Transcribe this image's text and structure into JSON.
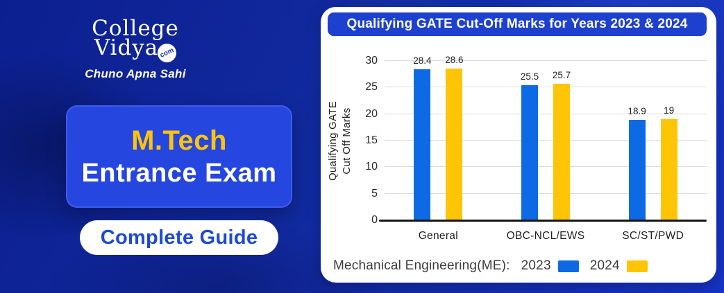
{
  "brand": {
    "logo_line1": "College",
    "logo_line2": "Vidya",
    "logo_badge": "com",
    "tagline": "Chuno Apna Sahi"
  },
  "hero": {
    "title_highlight": "M.Tech",
    "title_main": "Entrance Exam",
    "cta_label": "Complete Guide"
  },
  "chart_panel": {
    "title": "Qualifying GATE Cut-Off Marks for Years 2023 & 2024"
  },
  "chart_data": {
    "type": "bar",
    "title": "Qualifying GATE Cut-Off Marks for Years 2023 & 2024",
    "ylabel_lines": [
      "Qualifying GATE",
      "Cut Off Marks"
    ],
    "categories": [
      "General",
      "OBC-NCL/EWS",
      "SC/ST/PWD"
    ],
    "series": [
      {
        "name": "2023",
        "color": "#0e6ae4",
        "values": [
          28.4,
          25.5,
          18.9
        ]
      },
      {
        "name": "2024",
        "color": "#fdc506",
        "values": [
          28.6,
          25.7,
          19
        ]
      }
    ],
    "ylim": [
      0,
      30
    ],
    "yticks": [
      0,
      5,
      10,
      15,
      20,
      25,
      30
    ],
    "grid": true,
    "legend_prefix": "Mechanical Engineering(ME):",
    "legend_position": "bottom"
  },
  "colors": {
    "page_bg_dark": "#0c1f90",
    "page_bg_light": "#1634c6",
    "panel_title_blue": "#1e40cf",
    "hero_card_blue": "#2646e0",
    "accent_yellow": "#fcc40c",
    "cta_text_blue": "#1d49d8",
    "bar_2023": "#0e6ae4",
    "bar_2024": "#fdc506"
  }
}
